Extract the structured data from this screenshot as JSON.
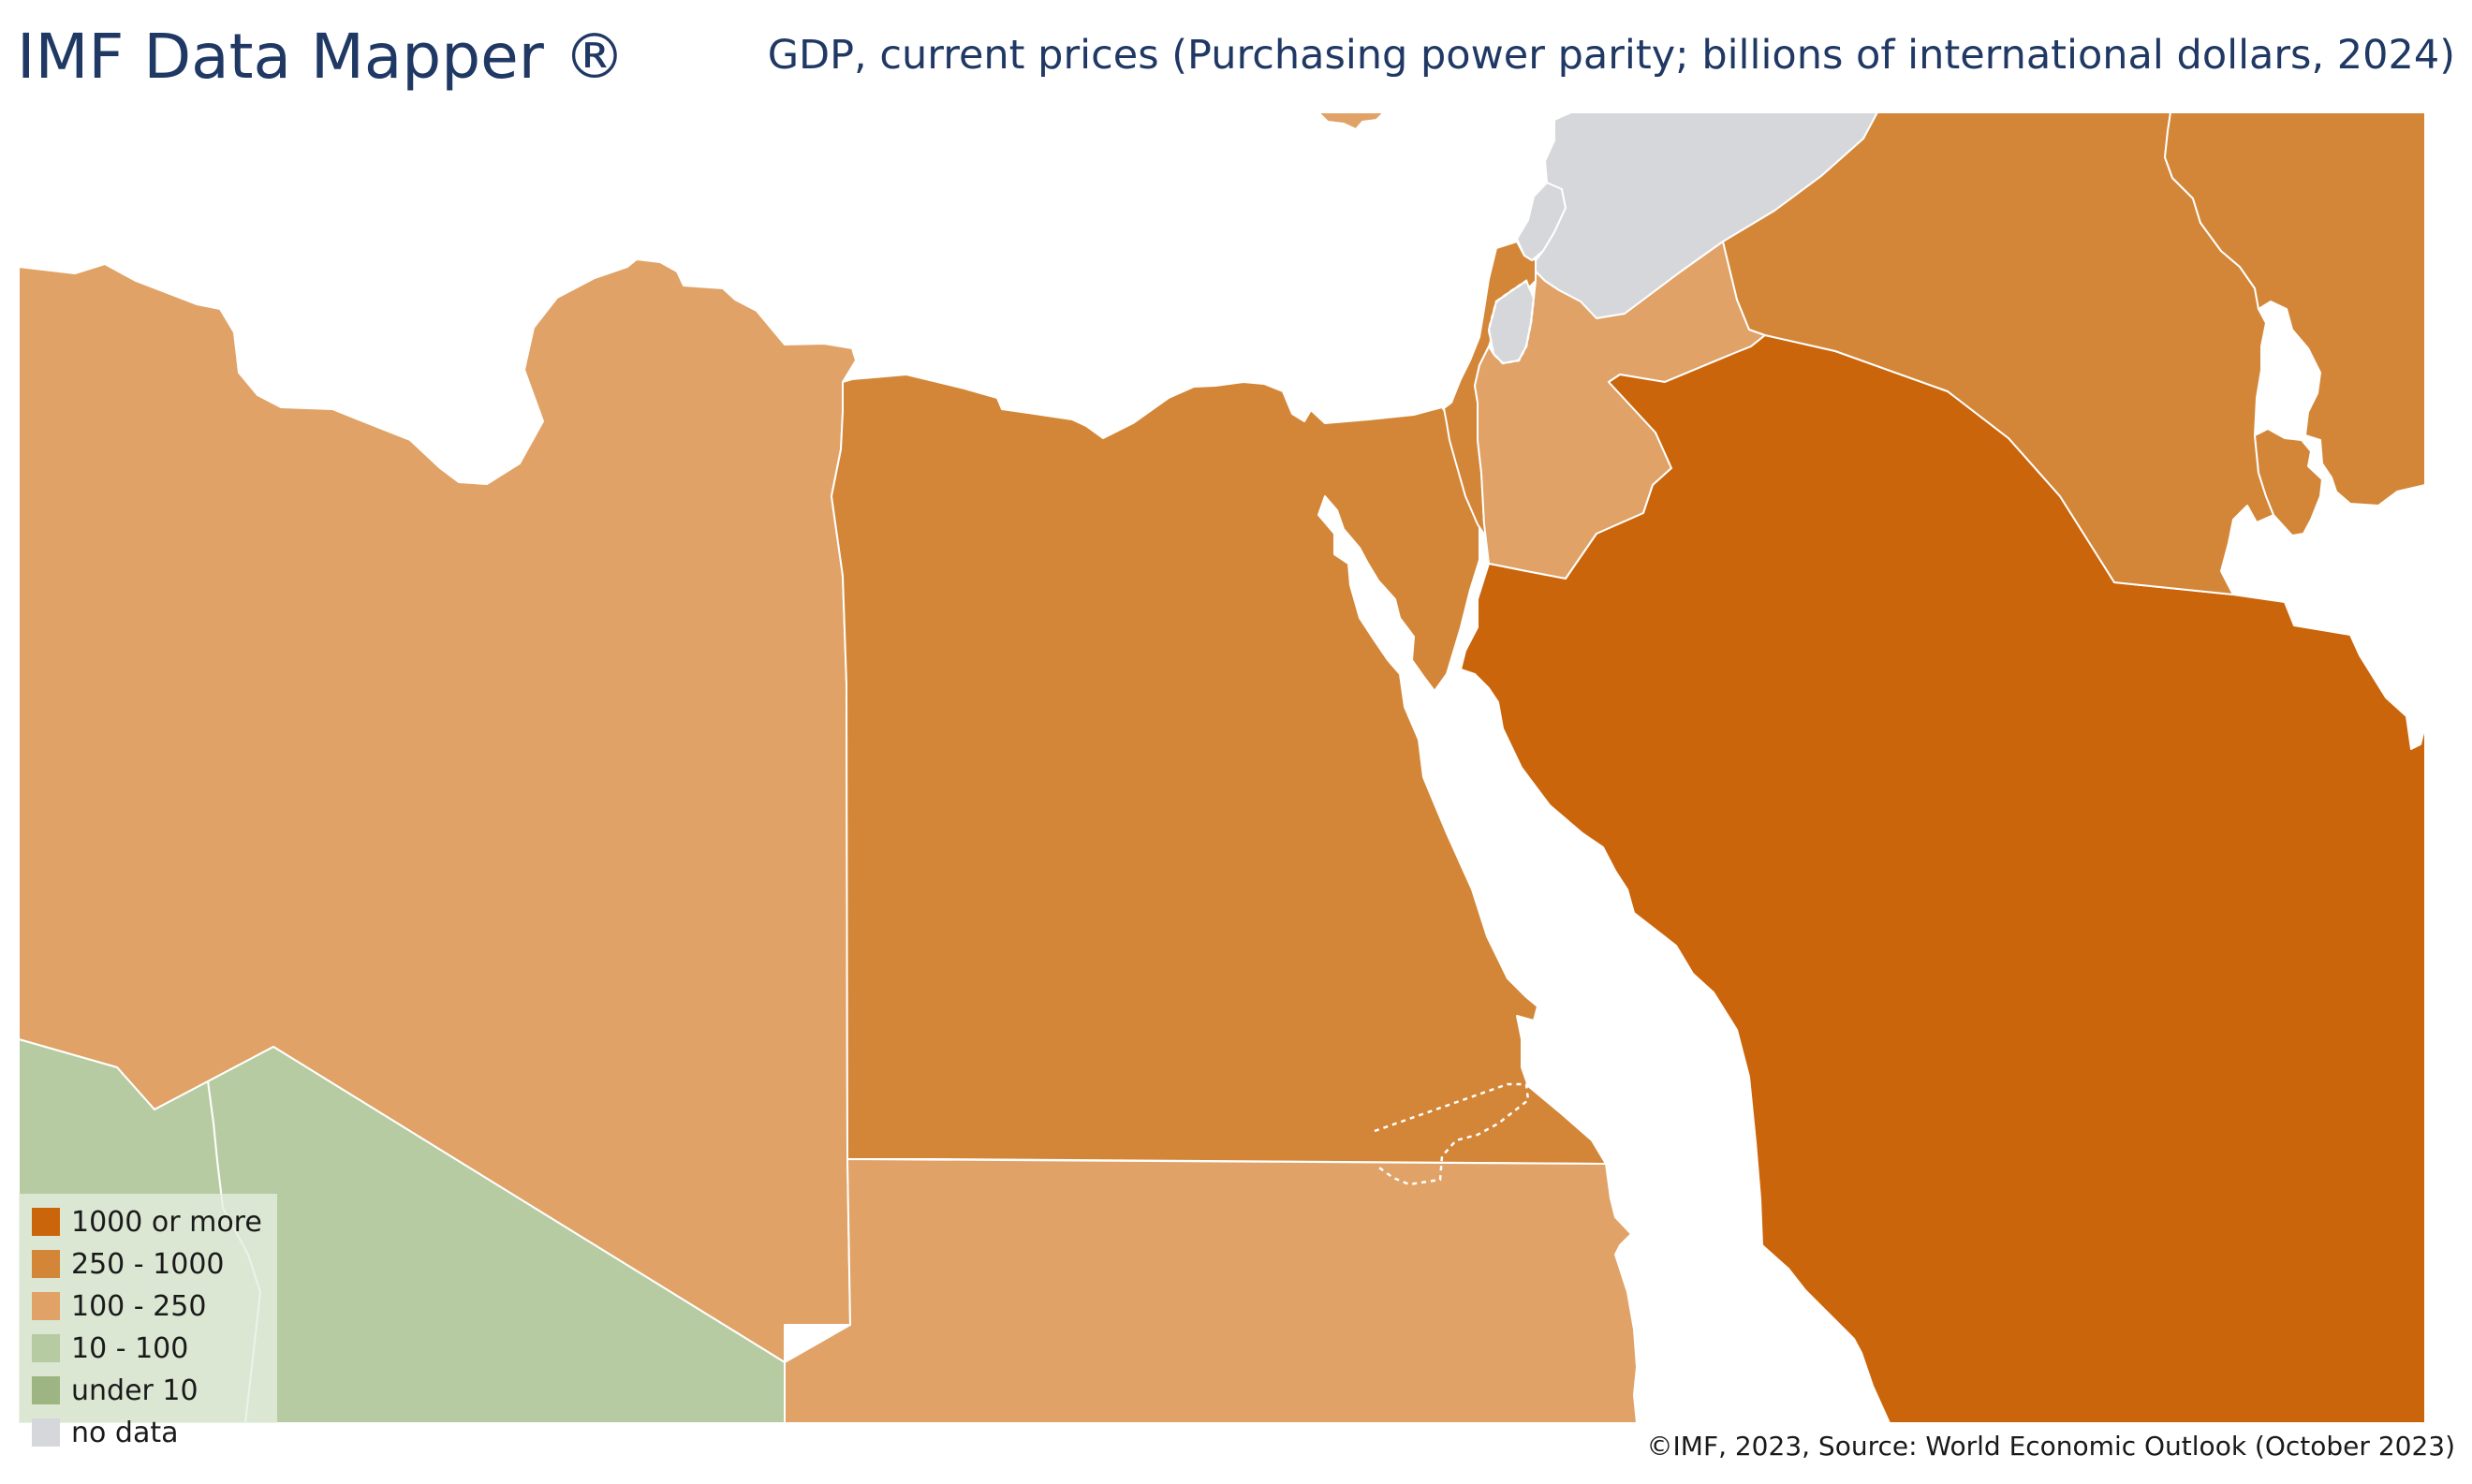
{
  "header": {
    "title": "IMF Data Mapper ®",
    "subtitle": "GDP, current prices (Purchasing power parity; billions of international dollars, 2024)"
  },
  "legend": {
    "items": [
      {
        "label": "1000 or more",
        "color": "#cb650b"
      },
      {
        "label": "250 - 1000",
        "color": "#d38638"
      },
      {
        "label": "100 - 250",
        "color": "#e0a267"
      },
      {
        "label": "10 - 100",
        "color": "#b6cba1"
      },
      {
        "label": "under 10",
        "color": "#9db583"
      },
      {
        "label": "no data",
        "color": "#d6d7db"
      }
    ]
  },
  "map": {
    "background": "#ffffff",
    "border_color": "#ffffff",
    "regions": [
      {
        "id": "libya",
        "class": "100 - 250",
        "fill": "#e0a267"
      },
      {
        "id": "chad",
        "class": "10 - 100",
        "fill": "#b6cba1"
      },
      {
        "id": "niger",
        "class": "10 - 100",
        "fill": "#b6cba1"
      },
      {
        "id": "egypt",
        "class": "250 - 1000",
        "fill": "#d38638"
      },
      {
        "id": "sudan",
        "class": "100 - 250",
        "fill": "#e0a267"
      },
      {
        "id": "israel",
        "class": "250 - 1000",
        "fill": "#d38638"
      },
      {
        "id": "west-bank",
        "class": "no data",
        "fill": "#d6d7db"
      },
      {
        "id": "jordan",
        "class": "100 - 250",
        "fill": "#e0a267"
      },
      {
        "id": "syria",
        "class": "no data",
        "fill": "#d6d7db"
      },
      {
        "id": "lebanon",
        "class": "no data",
        "fill": "#d6d7db"
      },
      {
        "id": "saudi-arabia",
        "class": "1000 or more",
        "fill": "#cb650b"
      },
      {
        "id": "iraq",
        "class": "250 - 1000",
        "fill": "#d38638"
      },
      {
        "id": "iran",
        "class": "250 - 1000",
        "fill": "#d38638"
      },
      {
        "id": "kuwait",
        "class": "250 - 1000",
        "fill": "#d38638"
      },
      {
        "id": "turkey",
        "class": "250 - 1000",
        "fill": "#d38638"
      },
      {
        "id": "cyprus",
        "class": "100 - 250",
        "fill": "#e0a267"
      }
    ]
  },
  "footer": {
    "credit": "©IMF, 2023, Source: World Economic Outlook (October 2023)"
  }
}
